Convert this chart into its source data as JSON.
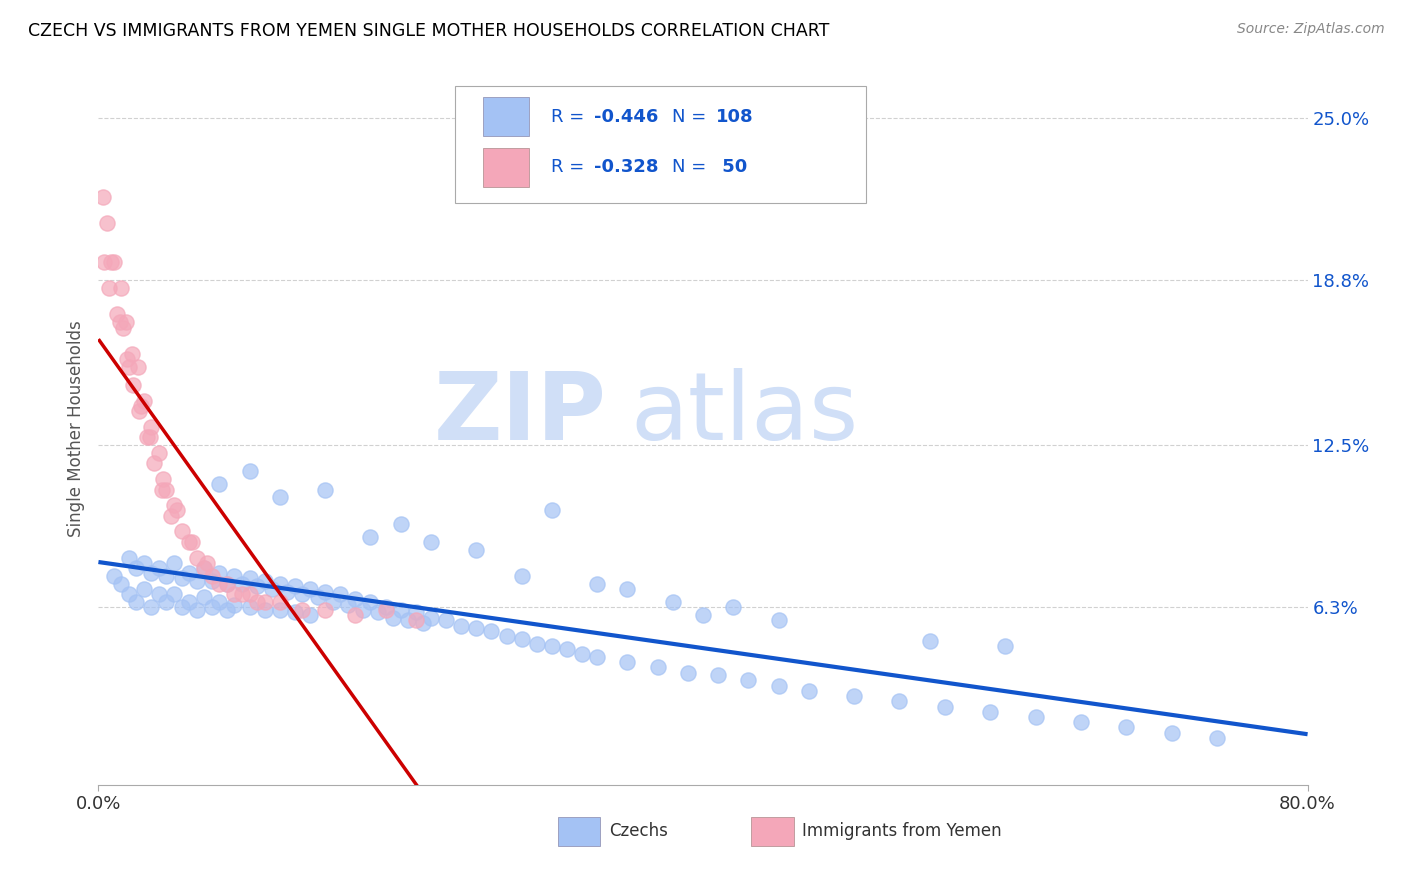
{
  "title": "CZECH VS IMMIGRANTS FROM YEMEN SINGLE MOTHER HOUSEHOLDS CORRELATION CHART",
  "source": "Source: ZipAtlas.com",
  "ylabel": "Single Mother Households",
  "xlim": [
    0.0,
    0.8
  ],
  "ylim": [
    -0.005,
    0.268
  ],
  "ytick_labels": [
    "6.3%",
    "12.5%",
    "18.8%",
    "25.0%"
  ],
  "ytick_values": [
    0.063,
    0.125,
    0.188,
    0.25
  ],
  "legend_r1": "-0.446",
  "legend_n1": "108",
  "legend_r2": "-0.328",
  "legend_n2": "50",
  "color_czech": "#a4c2f4",
  "color_yemen": "#f4a7b9",
  "color_line_czech": "#1155cc",
  "color_line_yemen": "#cc0000",
  "color_ytick": "#1155cc",
  "background_color": "#ffffff",
  "title_color": "#000000",
  "title_fontsize": 12.5,
  "grid_color": "#cccccc",
  "czech_x": [
    0.01,
    0.015,
    0.02,
    0.02,
    0.025,
    0.025,
    0.03,
    0.03,
    0.035,
    0.035,
    0.04,
    0.04,
    0.045,
    0.045,
    0.05,
    0.05,
    0.055,
    0.055,
    0.06,
    0.06,
    0.065,
    0.065,
    0.07,
    0.07,
    0.075,
    0.075,
    0.08,
    0.08,
    0.085,
    0.085,
    0.09,
    0.09,
    0.095,
    0.1,
    0.1,
    0.105,
    0.11,
    0.11,
    0.115,
    0.12,
    0.12,
    0.125,
    0.13,
    0.13,
    0.135,
    0.14,
    0.14,
    0.145,
    0.15,
    0.155,
    0.16,
    0.165,
    0.17,
    0.175,
    0.18,
    0.185,
    0.19,
    0.195,
    0.2,
    0.205,
    0.21,
    0.215,
    0.22,
    0.23,
    0.24,
    0.25,
    0.26,
    0.27,
    0.28,
    0.29,
    0.3,
    0.31,
    0.32,
    0.33,
    0.35,
    0.37,
    0.39,
    0.41,
    0.43,
    0.45,
    0.47,
    0.5,
    0.53,
    0.56,
    0.59,
    0.62,
    0.65,
    0.68,
    0.71,
    0.74,
    0.2,
    0.25,
    0.3,
    0.1,
    0.15,
    0.08,
    0.12,
    0.4,
    0.45,
    0.35,
    0.55,
    0.6,
    0.18,
    0.22,
    0.28,
    0.33,
    0.38,
    0.42
  ],
  "czech_y": [
    0.075,
    0.072,
    0.082,
    0.068,
    0.078,
    0.065,
    0.08,
    0.07,
    0.076,
    0.063,
    0.078,
    0.068,
    0.075,
    0.065,
    0.08,
    0.068,
    0.074,
    0.063,
    0.076,
    0.065,
    0.073,
    0.062,
    0.078,
    0.067,
    0.073,
    0.063,
    0.076,
    0.065,
    0.072,
    0.062,
    0.075,
    0.064,
    0.072,
    0.074,
    0.063,
    0.071,
    0.073,
    0.062,
    0.07,
    0.072,
    0.062,
    0.069,
    0.071,
    0.061,
    0.068,
    0.07,
    0.06,
    0.067,
    0.069,
    0.065,
    0.068,
    0.064,
    0.066,
    0.062,
    0.065,
    0.061,
    0.063,
    0.059,
    0.062,
    0.058,
    0.061,
    0.057,
    0.059,
    0.058,
    0.056,
    0.055,
    0.054,
    0.052,
    0.051,
    0.049,
    0.048,
    0.047,
    0.045,
    0.044,
    0.042,
    0.04,
    0.038,
    0.037,
    0.035,
    0.033,
    0.031,
    0.029,
    0.027,
    0.025,
    0.023,
    0.021,
    0.019,
    0.017,
    0.015,
    0.013,
    0.095,
    0.085,
    0.1,
    0.115,
    0.108,
    0.11,
    0.105,
    0.06,
    0.058,
    0.07,
    0.05,
    0.048,
    0.09,
    0.088,
    0.075,
    0.072,
    0.065,
    0.063
  ],
  "yemen_x": [
    0.003,
    0.004,
    0.006,
    0.007,
    0.01,
    0.012,
    0.015,
    0.016,
    0.018,
    0.019,
    0.022,
    0.023,
    0.026,
    0.027,
    0.03,
    0.032,
    0.035,
    0.037,
    0.04,
    0.042,
    0.045,
    0.048,
    0.052,
    0.055,
    0.06,
    0.065,
    0.07,
    0.075,
    0.08,
    0.09,
    0.1,
    0.11,
    0.12,
    0.135,
    0.15,
    0.17,
    0.19,
    0.21,
    0.008,
    0.014,
    0.02,
    0.028,
    0.034,
    0.043,
    0.05,
    0.062,
    0.072,
    0.085,
    0.095,
    0.105
  ],
  "yemen_y": [
    0.22,
    0.195,
    0.21,
    0.185,
    0.195,
    0.175,
    0.185,
    0.17,
    0.172,
    0.158,
    0.16,
    0.148,
    0.155,
    0.138,
    0.142,
    0.128,
    0.132,
    0.118,
    0.122,
    0.108,
    0.108,
    0.098,
    0.1,
    0.092,
    0.088,
    0.082,
    0.078,
    0.075,
    0.072,
    0.068,
    0.068,
    0.065,
    0.065,
    0.062,
    0.062,
    0.06,
    0.062,
    0.058,
    0.195,
    0.172,
    0.155,
    0.14,
    0.128,
    0.112,
    0.102,
    0.088,
    0.08,
    0.072,
    0.068,
    0.065
  ]
}
